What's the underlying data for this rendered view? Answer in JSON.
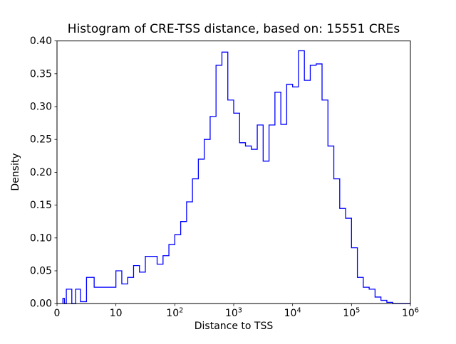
{
  "chart_data": {
    "type": "bar",
    "subtype": "step-histogram",
    "title": "Histogram of CRE-TSS distance, based on: 15551 CREs",
    "xlabel": "Distance to TSS",
    "ylabel": "Density",
    "x_scale": "symlog",
    "linthresh": 10,
    "xlim": [
      0,
      1000000
    ],
    "ylim": [
      0,
      0.4
    ],
    "grid": false,
    "legend": "none",
    "line_color": "#0000ff",
    "axis_color": "#000000",
    "background_color": "#ffffff",
    "x_ticks": [
      {
        "value": 0,
        "label": "0"
      },
      {
        "value": 10,
        "label": "10"
      },
      {
        "value": 100,
        "base": "10",
        "exp": "2"
      },
      {
        "value": 1000,
        "base": "10",
        "exp": "3"
      },
      {
        "value": 10000,
        "base": "10",
        "exp": "4"
      },
      {
        "value": 100000,
        "base": "10",
        "exp": "5"
      },
      {
        "value": 1000000,
        "base": "10",
        "exp": "6"
      }
    ],
    "y_ticks": [
      {
        "value": 0.0,
        "label": "0.00"
      },
      {
        "value": 0.05,
        "label": "0.05"
      },
      {
        "value": 0.1,
        "label": "0.10"
      },
      {
        "value": 0.15,
        "label": "0.15"
      },
      {
        "value": 0.2,
        "label": "0.20"
      },
      {
        "value": 0.25,
        "label": "0.25"
      },
      {
        "value": 0.3,
        "label": "0.30"
      },
      {
        "value": 0.35,
        "label": "0.35"
      },
      {
        "value": 0.4,
        "label": "0.40"
      }
    ],
    "bin_edges": [
      1,
      1.259,
      1.585,
      1.995,
      2.512,
      3.162,
      3.981,
      5.012,
      6.31,
      7.943,
      10,
      12.59,
      15.85,
      19.95,
      25.12,
      31.62,
      39.81,
      50.12,
      63.1,
      79.43,
      100,
      125.9,
      158.5,
      199.5,
      251.2,
      316.2,
      398.1,
      501.2,
      631,
      794.3,
      1000,
      1259,
      1585,
      1995,
      2512,
      3162,
      3981,
      5012,
      6310,
      7943,
      10000,
      12589,
      15849,
      19953,
      25119,
      31623,
      39811,
      50119,
      63096,
      79433,
      100000,
      125893,
      158489,
      199526,
      251189,
      316228,
      398107,
      501187,
      630957,
      794328,
      1000000
    ],
    "densities": [
      0.008,
      0.0,
      0.022,
      0.022,
      0.0,
      0.022,
      0.003,
      0.04,
      0.025,
      0.025,
      0.05,
      0.03,
      0.04,
      0.058,
      0.048,
      0.072,
      0.072,
      0.06,
      0.073,
      0.09,
      0.105,
      0.125,
      0.155,
      0.19,
      0.22,
      0.25,
      0.285,
      0.363,
      0.383,
      0.31,
      0.29,
      0.245,
      0.24,
      0.235,
      0.272,
      0.217,
      0.272,
      0.322,
      0.273,
      0.334,
      0.33,
      0.385,
      0.34,
      0.363,
      0.365,
      0.31,
      0.24,
      0.19,
      0.145,
      0.13,
      0.085,
      0.04,
      0.025,
      0.022,
      0.01,
      0.005,
      0.002,
      0.0,
      0.0,
      0.0
    ]
  }
}
